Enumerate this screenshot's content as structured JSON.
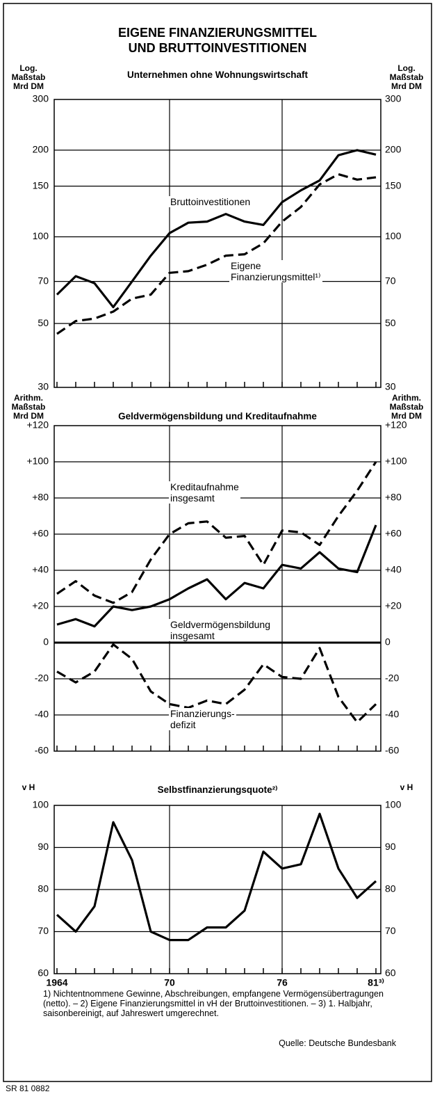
{
  "header": {
    "title": "EIGENE FINANZIERUNGSMITTEL\nUND BRUTTOINVESTITIONEN"
  },
  "chart_data": [
    {
      "type": "line",
      "subtitle": "Unternehmen ohne Wohnungswirtschaft",
      "ylabel": "Log. Maßstab\nMrd DM",
      "y2label": "Log. Maßstab\nMrd DM",
      "log_y": true,
      "x": [
        1964,
        1965,
        1966,
        1967,
        1968,
        1969,
        1970,
        1971,
        1972,
        1973,
        1974,
        1975,
        1976,
        1977,
        1978,
        1979,
        1980,
        1981
      ],
      "xlim": [
        1964,
        1981
      ],
      "xgrid": [
        1970,
        1976
      ],
      "ylim": [
        30,
        300
      ],
      "yticks": [
        30,
        50,
        70,
        100,
        150,
        200,
        300
      ],
      "series": [
        {
          "name": "Bruttoinvestitionen",
          "color": "#000000",
          "style": "solid",
          "values": [
            63,
            73,
            69,
            57,
            70,
            86,
            103,
            112,
            113,
            120,
            113,
            110,
            132,
            145,
            157,
            192,
            200,
            193
          ]
        },
        {
          "name": "Eigene\nFinanzierungsmittel¹⁾",
          "color": "#000000",
          "style": "dashed",
          "values": [
            46,
            51,
            52,
            55,
            61,
            63,
            75,
            76,
            80,
            86,
            87,
            95,
            113,
            127,
            152,
            165,
            158,
            161
          ]
        }
      ]
    },
    {
      "type": "line",
      "subtitle": "Geldvermögensbildung und Kreditaufnahme",
      "ylabel": "Arithm.\nMaßstab\nMrd DM",
      "y2label": "Arithm.\nMaßstab\nMrd DM",
      "x": [
        1964,
        1965,
        1966,
        1967,
        1968,
        1969,
        1970,
        1971,
        1972,
        1973,
        1974,
        1975,
        1976,
        1977,
        1978,
        1979,
        1980,
        1981
      ],
      "xlim": [
        1964,
        1981
      ],
      "xgrid": [
        1970,
        1976
      ],
      "ylim": [
        -60,
        120
      ],
      "yticks": [
        -60,
        -40,
        -20,
        0,
        {
          "value": 20,
          "label": "+20"
        },
        {
          "value": 40,
          "label": "+40"
        },
        {
          "value": 60,
          "label": "+60"
        },
        {
          "value": 80,
          "label": "+80"
        },
        {
          "value": 100,
          "label": "+100"
        },
        {
          "value": 120,
          "label": "+120"
        }
      ],
      "series": [
        {
          "name": "Kreditaufnahme\ninsgesamt",
          "color": "#000000",
          "style": "dashed",
          "values": [
            27,
            34,
            26,
            22,
            28,
            46,
            60,
            66,
            67,
            58,
            59,
            43,
            62,
            61,
            54,
            70,
            84,
            100
          ]
        },
        {
          "name": "Geldvermögensbildung\ninsgesamt",
          "color": "#000000",
          "style": "solid",
          "values": [
            10,
            13,
            9,
            20,
            18,
            20,
            24,
            30,
            35,
            24,
            33,
            30,
            43,
            41,
            50,
            41,
            39,
            65
          ]
        },
        {
          "name": "Finanzierungs-\ndefizit",
          "color": "#000000",
          "style": "dashed",
          "values": [
            -16,
            -22,
            -16,
            -1,
            -9,
            -27,
            -34,
            -36,
            -32,
            -34,
            -26,
            -12,
            -19,
            -20,
            -3,
            -30,
            -44,
            -34
          ]
        }
      ]
    },
    {
      "type": "line",
      "subtitle": "Selbstfinanzierungsquote²⁾",
      "ylabel": "v H",
      "y2label": "v H",
      "x": [
        1964,
        1965,
        1966,
        1967,
        1968,
        1969,
        1970,
        1971,
        1972,
        1973,
        1974,
        1975,
        1976,
        1977,
        1978,
        1979,
        1980,
        1981
      ],
      "xlim": [
        1964,
        1981
      ],
      "xticks": [
        1964,
        {
          "value": 1970,
          "label": "70"
        },
        {
          "value": 1976,
          "label": "76"
        },
        {
          "value": 1981,
          "label": "81³⁾"
        }
      ],
      "ylim": [
        60,
        100
      ],
      "yticks": [
        60,
        70,
        80,
        90,
        100
      ],
      "color": "#000000",
      "values": [
        74,
        70,
        76,
        96,
        87,
        70,
        68,
        68,
        71,
        71,
        75,
        89,
        85,
        86,
        98,
        85,
        78,
        82
      ]
    }
  ],
  "footnote": "1) Nichtentnommene Gewinne, Abschreibungen, empfangene Vermögensübertragungen (netto). – 2) Eigene Finanzierungsmittel in vH der Bruttoinvestitionen. – 3) 1. Halbjahr, saisonbereinigt, auf Jahreswert umgerechnet.",
  "source": "Quelle: Deutsche Bundesbank",
  "code": "SR 81 0882"
}
